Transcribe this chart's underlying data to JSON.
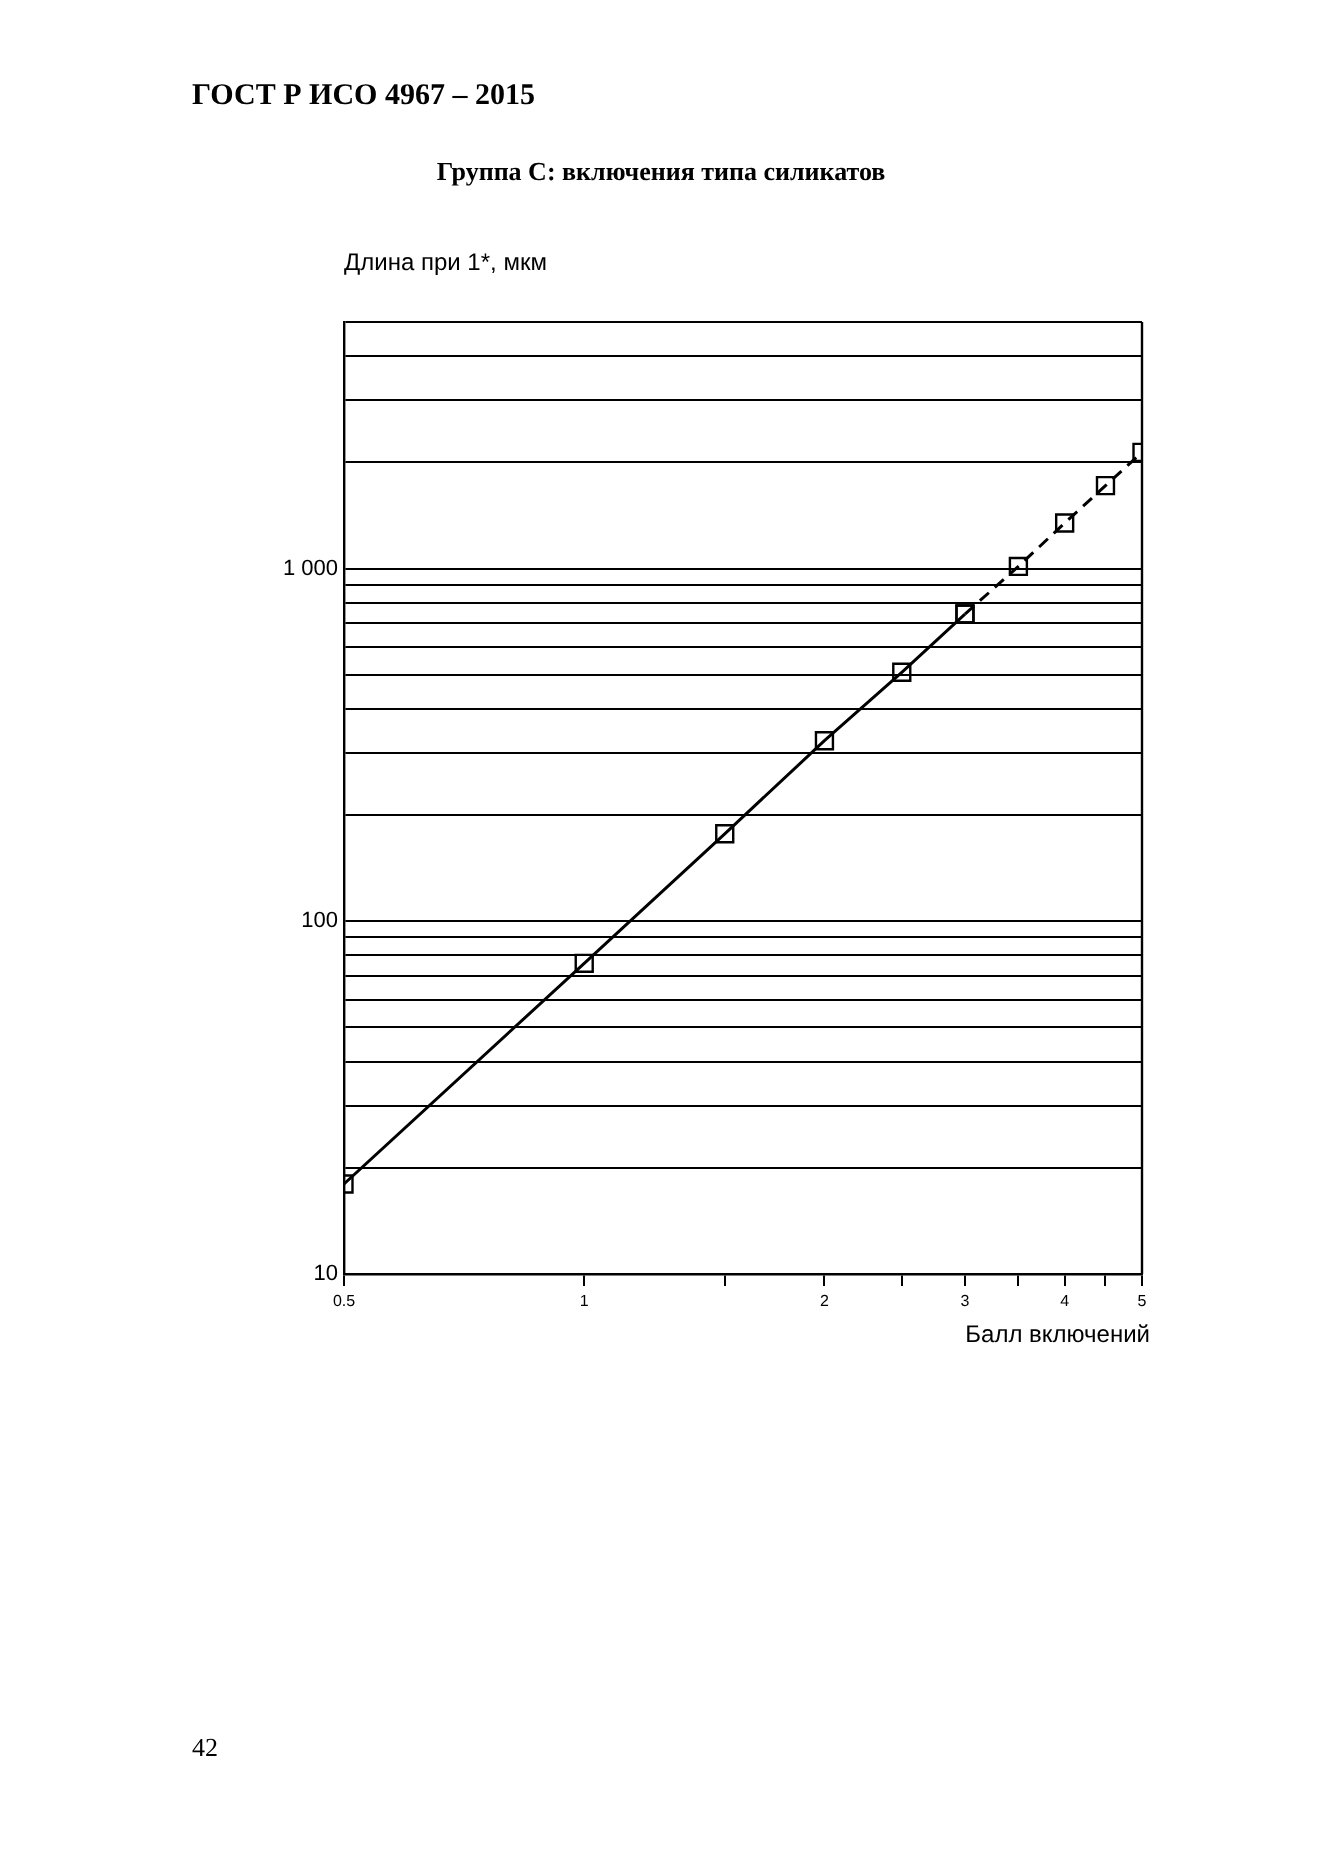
{
  "chart_data": {
    "type": "line",
    "title": "Группа С: включения типа силикатов",
    "xlabel": "Балл включений",
    "ylabel": "Длина при 1*, мкм",
    "annotations": [
      "ГОСТ Р ИСО 4967 – 2015",
      "42"
    ],
    "log": "xy",
    "grid": "y",
    "marker": "square",
    "xlim": [
      0.5,
      5
    ],
    "xticks": [
      {
        "value": 0.5,
        "label": "0.5"
      },
      1,
      {
        "value": 1.5,
        "label": null
      },
      2,
      {
        "value": 2.5,
        "label": null
      },
      3,
      {
        "value": 3.5,
        "label": null
      },
      4,
      {
        "value": 4.5,
        "label": null
      },
      5
    ],
    "ylim": [
      10,
      5000
    ],
    "yticks": [
      10,
      {
        "value": 20,
        "label": null
      },
      {
        "value": 30,
        "label": null
      },
      {
        "value": 40,
        "label": null
      },
      {
        "value": 50,
        "label": null
      },
      {
        "value": 60,
        "label": null
      },
      {
        "value": 70,
        "label": null
      },
      {
        "value": 80,
        "label": null
      },
      {
        "value": 90,
        "label": null
      },
      100,
      {
        "value": 200,
        "label": null
      },
      {
        "value": 300,
        "label": null
      },
      {
        "value": 400,
        "label": null
      },
      {
        "value": 500,
        "label": null
      },
      {
        "value": 600,
        "label": null
      },
      {
        "value": 700,
        "label": null
      },
      {
        "value": 800,
        "label": null
      },
      {
        "value": 900,
        "label": null
      },
      {
        "value": 1000,
        "label": "1 000"
      },
      {
        "value": 2000,
        "label": null
      },
      {
        "value": 3000,
        "label": null
      },
      {
        "value": 4000,
        "label": null
      },
      {
        "value": 5000,
        "label": null
      }
    ],
    "series": [
      {
        "color": "#000000",
        "line_style": "solid",
        "x": [
          0.5,
          1,
          1.5,
          2,
          2.5,
          3
        ],
        "values": [
          18,
          76,
          177,
          325,
          508,
          743
        ]
      },
      {
        "color": "#000000",
        "line_style": "dashed",
        "x": [
          3,
          3.5,
          4,
          4.5,
          5
        ],
        "values": [
          743,
          1014,
          1346,
          1718,
          2135
        ]
      }
    ]
  }
}
